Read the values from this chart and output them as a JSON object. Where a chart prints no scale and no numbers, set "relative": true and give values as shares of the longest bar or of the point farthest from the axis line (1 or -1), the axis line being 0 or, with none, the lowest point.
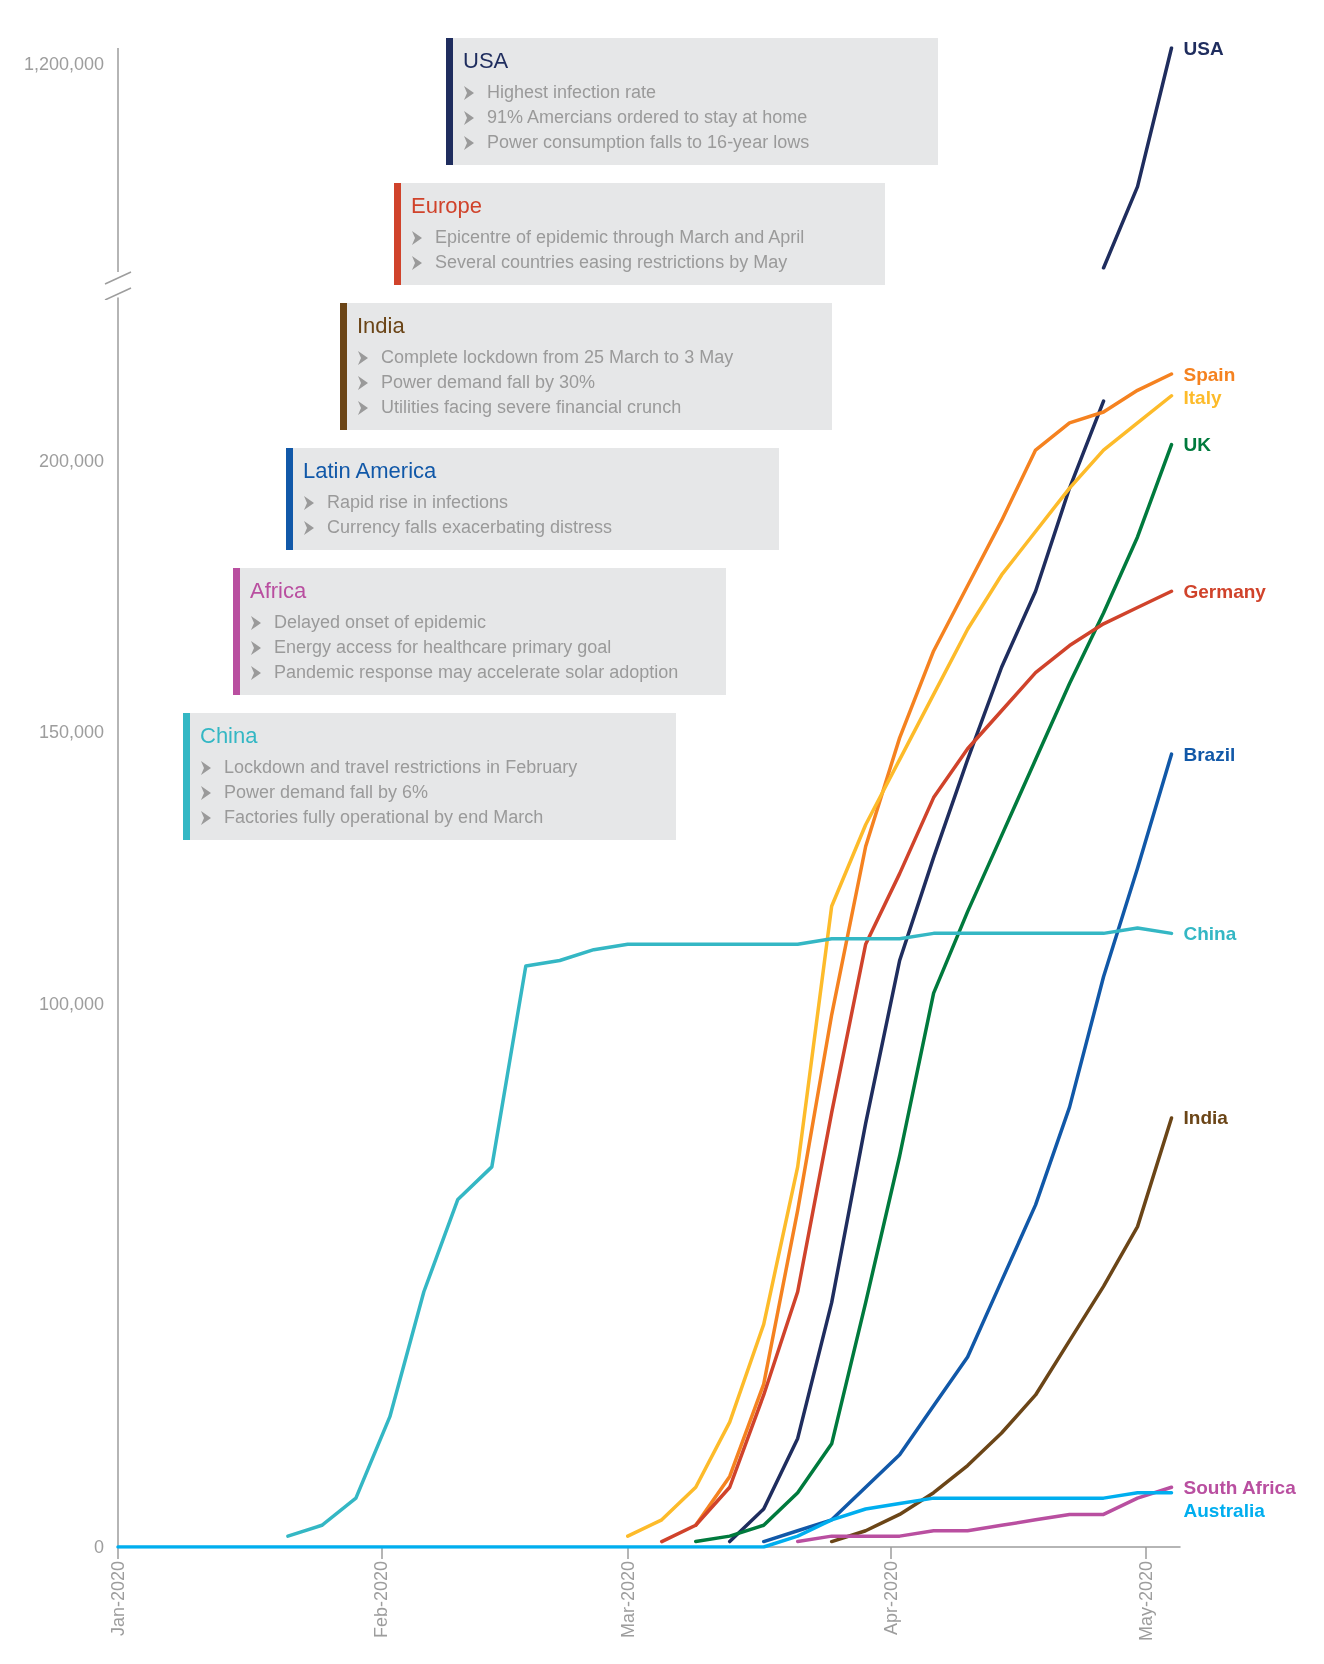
{
  "chart_data": [
    {
      "type": "line",
      "relative": true,
      "tick_labels": false,
      "grid": false,
      "legend": false,
      "marker": "none",
      "line_style": "solid",
      "annotations": [
        "1,200,000"
      ],
      "categories": [
        null,
        null,
        null
      ],
      "series": [
        {
          "name": "USA",
          "color": "#1f2d5e",
          "values": [
            0,
            0.37,
            1
          ]
        }
      ]
    },
    {
      "type": "line",
      "grid": false,
      "legend": false,
      "marker": "none",
      "line_style": "solid",
      "x": [
        "2020-01-01",
        "2020-01-05",
        "2020-01-09",
        "2020-01-13",
        "2020-01-17",
        "2020-01-21",
        "2020-01-25",
        "2020-01-29",
        "2020-02-02",
        "2020-02-06",
        "2020-02-10",
        "2020-02-14",
        "2020-02-18",
        "2020-02-22",
        "2020-02-26",
        "2020-03-01",
        "2020-03-05",
        "2020-03-09",
        "2020-03-13",
        "2020-03-17",
        "2020-03-21",
        "2020-03-25",
        "2020-03-29",
        "2020-04-02",
        "2020-04-06",
        "2020-04-10",
        "2020-04-14",
        "2020-04-18",
        "2020-04-22",
        "2020-04-26",
        "2020-04-30",
        "2020-05-04"
      ],
      "xlim": [
        "2020-01-01",
        "2020-05-05"
      ],
      "xticks": [
        {
          "value": "2020-01-01",
          "label": "Jan-2020"
        },
        {
          "value": "2020-02-01",
          "label": "Feb-2020"
        },
        {
          "value": "2020-03-01",
          "label": "Mar-2020"
        },
        {
          "value": "2020-04-01",
          "label": "Apr-2020"
        },
        {
          "value": "2020-05-01",
          "label": "May-2020"
        }
      ],
      "ylim": [
        0,
        230000
      ],
      "yticks": [
        0,
        {
          "value": 100000,
          "label": "100,000"
        },
        {
          "value": 150000,
          "label": "150,000"
        },
        {
          "value": 200000,
          "label": "200,000"
        }
      ],
      "series": [
        {
          "color": "#1f2d5e",
          "values": [
            null,
            null,
            null,
            null,
            null,
            null,
            null,
            null,
            null,
            null,
            null,
            null,
            null,
            null,
            null,
            null,
            null,
            null,
            1000,
            7000,
            20000,
            45000,
            78000,
            108000,
            127000,
            145000,
            162000,
            176000,
            195000,
            211000,
            null,
            null
          ]
        },
        {
          "name": "Spain",
          "color": "#f58220",
          "values": [
            null,
            null,
            null,
            null,
            null,
            null,
            null,
            null,
            null,
            null,
            null,
            null,
            null,
            null,
            null,
            null,
            null,
            4000,
            13000,
            30000,
            62000,
            98000,
            129000,
            149000,
            165000,
            177000,
            189000,
            202000,
            207000,
            209000,
            213000,
            216000
          ]
        },
        {
          "name": "Italy",
          "color": "#fdbb2a",
          "values": [
            null,
            null,
            null,
            null,
            null,
            null,
            null,
            null,
            null,
            null,
            null,
            null,
            null,
            null,
            null,
            2000,
            5000,
            11000,
            23000,
            41000,
            70000,
            118000,
            133000,
            145000,
            157000,
            169000,
            179000,
            187000,
            195000,
            202000,
            207000,
            212000
          ]
        },
        {
          "name": "UK",
          "color": "#007a3d",
          "values": [
            null,
            null,
            null,
            null,
            null,
            null,
            null,
            null,
            null,
            null,
            null,
            null,
            null,
            null,
            null,
            null,
            null,
            1000,
            2000,
            4000,
            10000,
            19000,
            45000,
            72000,
            102000,
            117000,
            131000,
            145000,
            159000,
            172000,
            186000,
            203000
          ]
        },
        {
          "name": "Germany",
          "color": "#d0432b",
          "values": [
            null,
            null,
            null,
            null,
            null,
            null,
            null,
            null,
            null,
            null,
            null,
            null,
            null,
            null,
            null,
            null,
            1000,
            4000,
            11000,
            28000,
            47000,
            80000,
            111000,
            124000,
            138000,
            147000,
            154000,
            161000,
            166000,
            170000,
            173000,
            176000
          ]
        },
        {
          "name": "Brazil",
          "color": "#1158a8",
          "values": [
            null,
            null,
            null,
            null,
            null,
            null,
            null,
            null,
            null,
            null,
            null,
            null,
            null,
            null,
            null,
            null,
            null,
            null,
            null,
            1000,
            3000,
            5000,
            11000,
            17000,
            26000,
            35000,
            49000,
            63000,
            81000,
            105000,
            125000,
            146000
          ]
        },
        {
          "name": "China",
          "color": "#34b7c4",
          "values": [
            null,
            null,
            null,
            null,
            null,
            2000,
            4000,
            9000,
            24000,
            47000,
            64000,
            70000,
            107000,
            108000,
            110000,
            111000,
            111000,
            111000,
            111000,
            111000,
            111000,
            112000,
            112000,
            112000,
            113000,
            113000,
            113000,
            113000,
            113000,
            113000,
            114000,
            113000
          ]
        },
        {
          "name": "India",
          "color": "#6b4517",
          "values": [
            null,
            null,
            null,
            null,
            null,
            null,
            null,
            null,
            null,
            null,
            null,
            null,
            null,
            null,
            null,
            null,
            null,
            null,
            null,
            null,
            null,
            1000,
            3000,
            6000,
            10000,
            15000,
            21000,
            28000,
            38000,
            48000,
            59000,
            79000
          ]
        },
        {
          "name": "South Africa",
          "color": "#b94fa0",
          "values": [
            null,
            null,
            null,
            null,
            null,
            null,
            null,
            null,
            null,
            null,
            null,
            null,
            null,
            null,
            null,
            null,
            null,
            null,
            null,
            null,
            1000,
            2000,
            2000,
            2000,
            3000,
            3000,
            4000,
            5000,
            6000,
            6000,
            9000,
            11000
          ]
        },
        {
          "name": "Australia",
          "color": "#00aeef",
          "values": [
            0,
            0,
            0,
            0,
            0,
            0,
            0,
            0,
            0,
            0,
            0,
            0,
            0,
            0,
            0,
            0,
            0,
            0,
            0,
            0,
            2000,
            5000,
            7000,
            8000,
            9000,
            9000,
            9000,
            9000,
            9000,
            9000,
            10000,
            10000
          ]
        }
      ],
      "annotations": [
        "USA\nHighest infection rate\n91% Amercians ordered to stay at home\nPower consumption falls to 16-year lows",
        "Europe\nEpicentre of epidemic through March and April\nSeveral countries easing restrictions by May",
        "India\nComplete lockdown from 25 March to 3 May\nPower demand fall by 30%\nUtilities facing severe financial crunch",
        "Latin America\nRapid rise in infections\nCurrency falls exacerbating distress",
        "Africa\nDelayed onset of epidemic\nEnergy access for healthcare primary goal\nPandemic response may accelerate solar adoption",
        "China\nLockdown and travel restrictions in February\nPower demand fall by 6%\nFactories fully operational by end March"
      ]
    }
  ]
}
